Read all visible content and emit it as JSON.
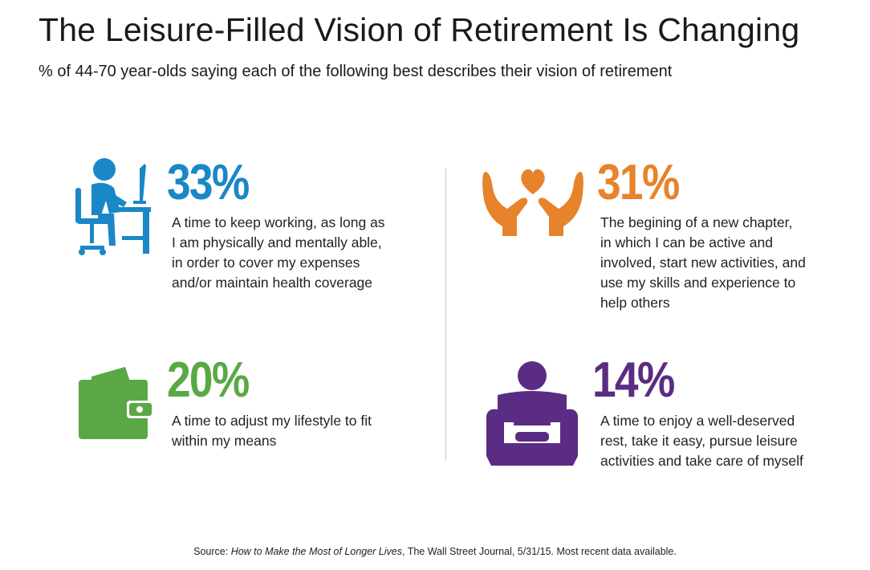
{
  "title": "The Leisure-Filled Vision of Retirement Is Changing",
  "subtitle": "% of 44-70 year-olds saying each of the following best describes their vision of retirement",
  "stats": [
    {
      "value": "33%",
      "icon": "person-at-computer-icon",
      "color": "#1a87c6",
      "lines": [
        "A time to keep working, as long as",
        "I am physically and mentally able,",
        "in order to cover my expenses",
        "and/or maintain health coverage"
      ]
    },
    {
      "value": "31%",
      "icon": "hands-holding-heart-icon",
      "color": "#e7832b",
      "lines": [
        "The begining of a new chapter,",
        "in which I can be active and",
        "involved, start new activities, and",
        "use my skills and experience to",
        "help others"
      ]
    },
    {
      "value": "20%",
      "icon": "wallet-icon",
      "color": "#5aa845",
      "lines": [
        "A time to adjust my lifestyle to fit",
        "within my means"
      ]
    },
    {
      "value": "14%",
      "icon": "person-in-armchair-icon",
      "color": "#5b2c83",
      "lines": [
        "A time to enjoy a well-deserved",
        "rest, take it easy, pursue leisure",
        "activities and take care of myself"
      ]
    }
  ],
  "source": {
    "prefix": "Source: ",
    "title": "How to Make the Most of Longer Lives",
    "suffix": ", The Wall Street Journal, 5/31/15. Most recent data available."
  }
}
